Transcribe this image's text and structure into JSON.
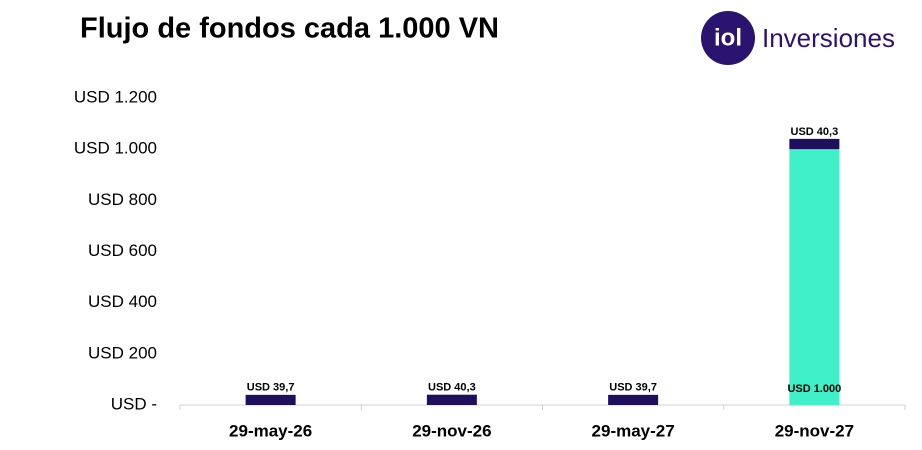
{
  "chart_data": {
    "type": "stacked_bar",
    "title": "Flujo de fondos cada 1.000 VN",
    "logo": {
      "mark": "iol",
      "text": "Inversiones"
    },
    "categories": [
      "29-may-26",
      "29-nov-26",
      "29-may-27",
      "29-nov-27"
    ],
    "series": [
      {
        "color": "#40f0c8",
        "values": [
          null,
          null,
          null,
          1000
        ],
        "value_labels": [
          null,
          null,
          null,
          "USD 1.000"
        ]
      },
      {
        "color": "#1f0f5c",
        "values": [
          39.7,
          40.3,
          39.7,
          40.3
        ],
        "value_labels": [
          "USD 39,7",
          "USD 40,3",
          "USD 39,7",
          "USD 40,3"
        ]
      }
    ],
    "ylim": [
      0,
      1200
    ],
    "yticks": [
      {
        "value": 0,
        "label": "USD -"
      },
      {
        "value": 200,
        "label": "USD 200"
      },
      {
        "value": 400,
        "label": "USD 400"
      },
      {
        "value": 600,
        "label": "USD 600"
      },
      {
        "value": 800,
        "label": "USD 800"
      },
      {
        "value": 1000,
        "label": "USD 1.000"
      },
      {
        "value": 1200,
        "label": "USD 1.200"
      }
    ],
    "grid": false
  }
}
